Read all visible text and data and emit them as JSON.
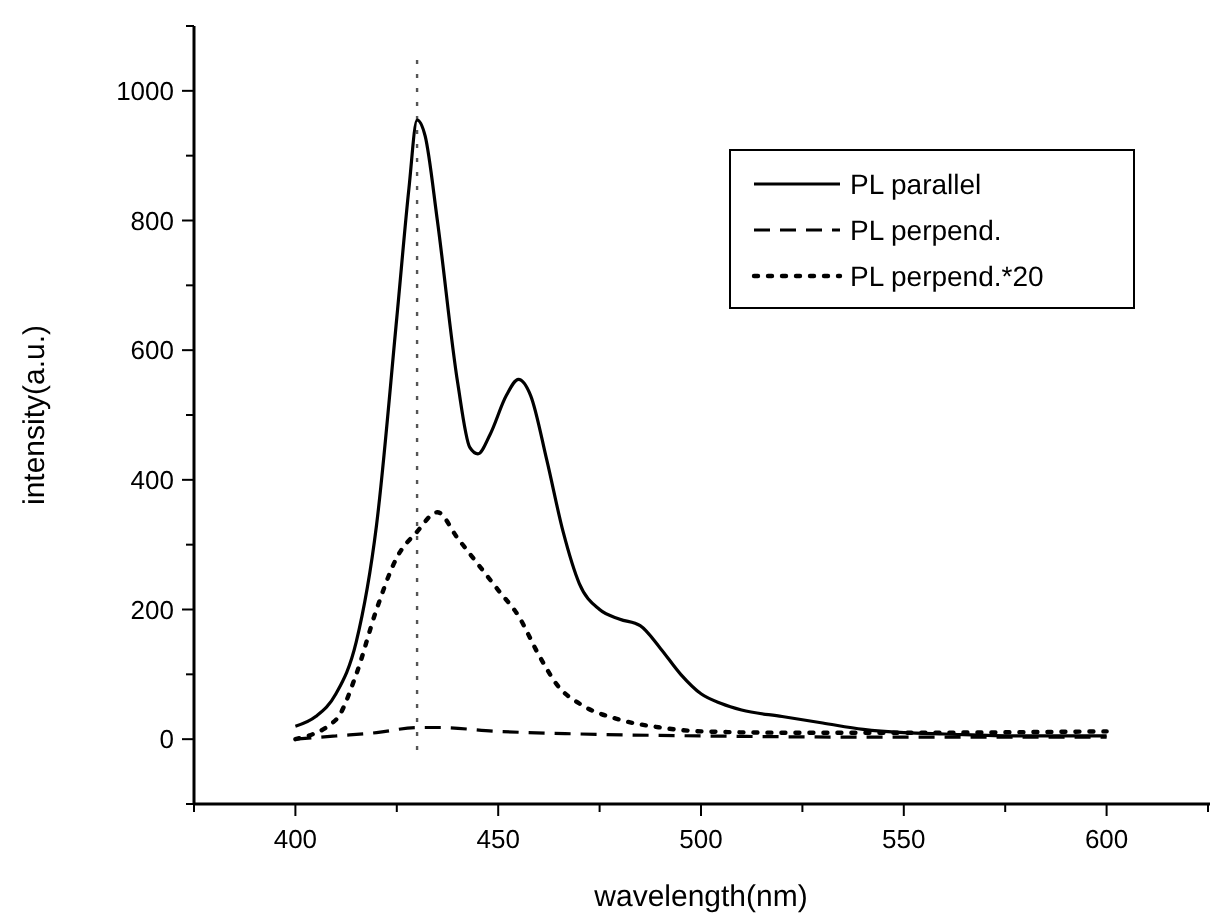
{
  "chart_data": {
    "type": "line",
    "xlabel": "wavelength(nm)",
    "ylabel": "intensity(a.u.)",
    "xlim": [
      375,
      625
    ],
    "ylim": [
      -100,
      1100
    ],
    "xticks": [
      {
        "value": 375,
        "label": null
      },
      400,
      {
        "value": 425,
        "label": null
      },
      450,
      {
        "value": 475,
        "label": null
      },
      500,
      {
        "value": 525,
        "label": null
      },
      550,
      {
        "value": 575,
        "label": null
      },
      600,
      {
        "value": 625,
        "label": null
      }
    ],
    "yticks": [
      {
        "value": -100,
        "label": null
      },
      0,
      {
        "value": 100,
        "label": null
      },
      200,
      {
        "value": 300,
        "label": null
      },
      400,
      {
        "value": 500,
        "label": null
      },
      600,
      {
        "value": 700,
        "label": null
      },
      800,
      {
        "value": 900,
        "label": null
      },
      1000,
      {
        "value": 1100,
        "label": null
      }
    ],
    "grid": false,
    "legend": "top right",
    "marker": "none",
    "ref_lines": [
      {
        "axis": "x",
        "value": 430,
        "line_style": "dotted",
        "color": "#555555"
      }
    ],
    "series": [
      {
        "name": "PL parallel",
        "color": "#000000",
        "line_style": "solid",
        "x": [
          400,
          405,
          410,
          415,
          420,
          425,
          428,
          430,
          432,
          435,
          440,
          443,
          445,
          448,
          452,
          455,
          458,
          462,
          466,
          470,
          475,
          480,
          485,
          490,
          495,
          500,
          505,
          510,
          520,
          530,
          540,
          550,
          560,
          580,
          600
        ],
        "values": [
          20,
          35,
          70,
          150,
          330,
          650,
          850,
          955,
          930,
          800,
          550,
          450,
          440,
          470,
          530,
          555,
          530,
          430,
          320,
          240,
          200,
          185,
          175,
          140,
          100,
          70,
          55,
          45,
          35,
          25,
          15,
          10,
          8,
          5,
          5
        ]
      },
      {
        "name": "PL perpend.",
        "color": "#000000",
        "line_style": "dashed",
        "x": [
          400,
          410,
          420,
          430,
          435,
          450,
          470,
          500,
          550,
          600
        ],
        "values": [
          0,
          5,
          10,
          18,
          18,
          12,
          8,
          5,
          3,
          3
        ]
      },
      {
        "name": "PL perpend.*20",
        "color": "#000000",
        "line_style": "dotted",
        "x": [
          400,
          410,
          415,
          420,
          425,
          430,
          435,
          440,
          445,
          450,
          455,
          460,
          465,
          470,
          480,
          490,
          500,
          520,
          550,
          600
        ],
        "values": [
          0,
          30,
          100,
          200,
          280,
          320,
          350,
          310,
          270,
          230,
          190,
          130,
          80,
          55,
          30,
          18,
          12,
          10,
          10,
          12
        ]
      }
    ]
  }
}
